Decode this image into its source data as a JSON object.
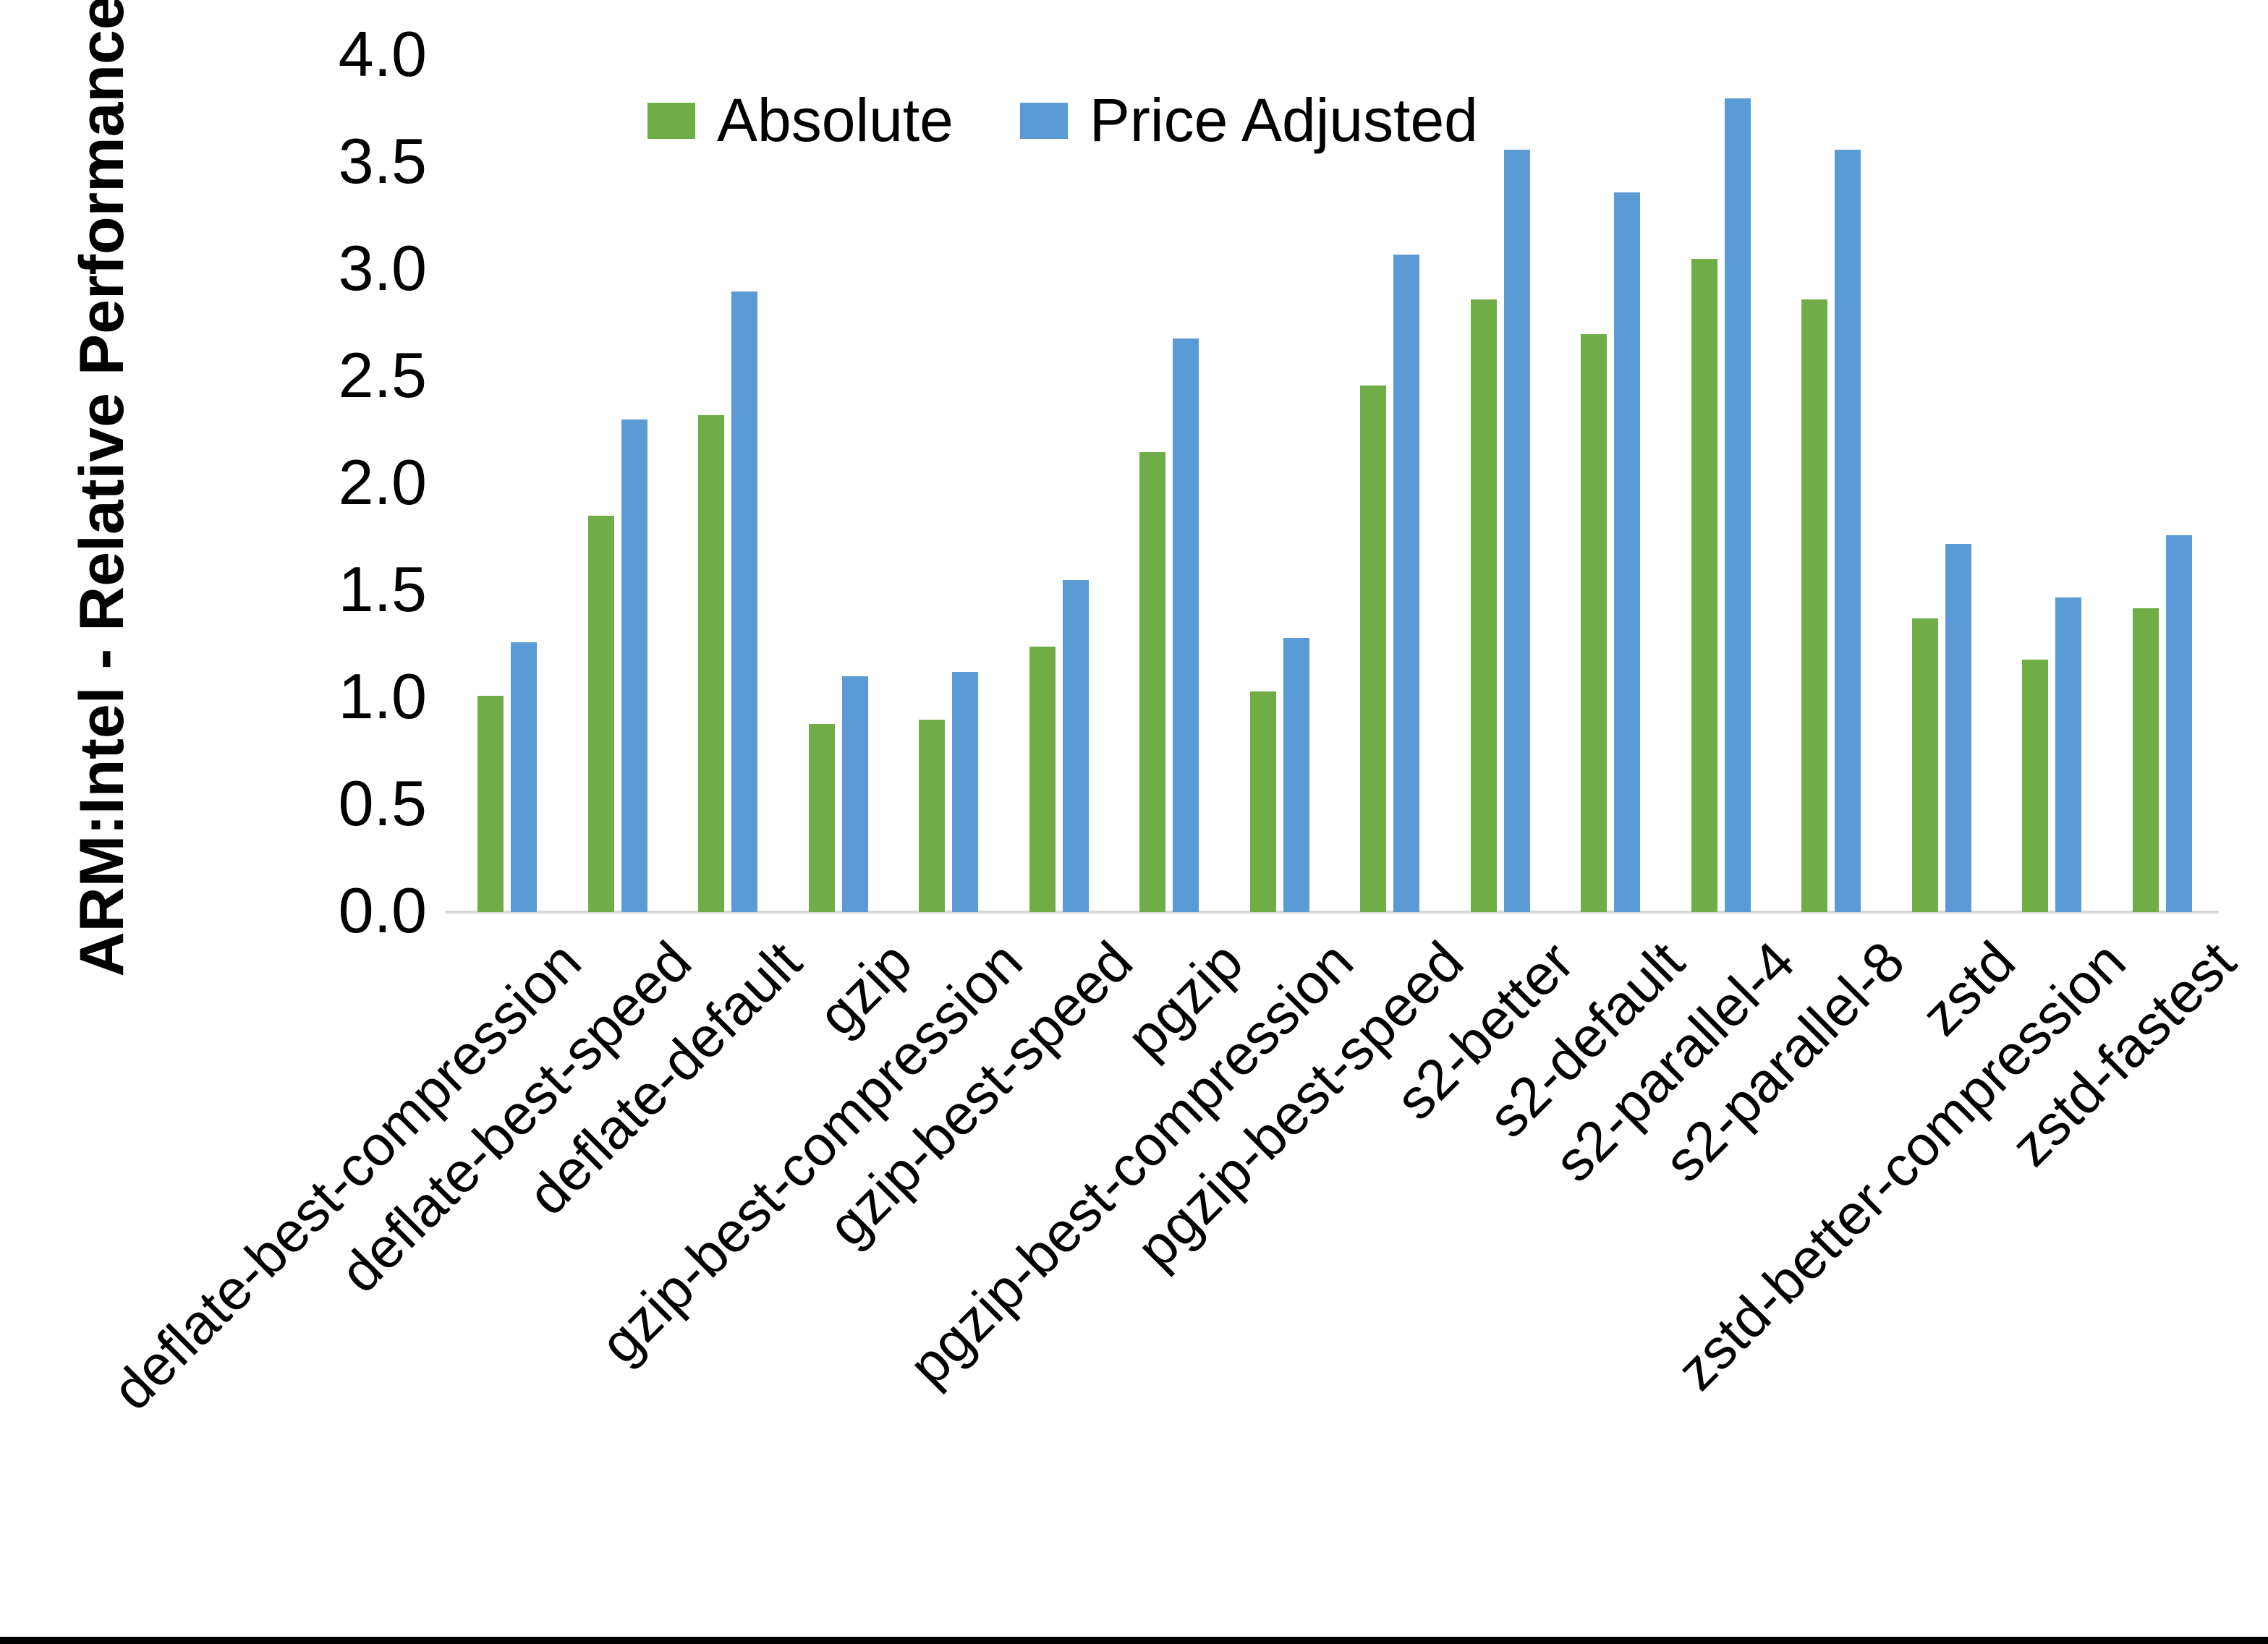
{
  "page": {
    "background": "#FFFFFF",
    "text_color": "#000000",
    "axis_line_color": "#D9D9D9",
    "bottom_border_color": "#000000"
  },
  "chart_data": {
    "type": "bar",
    "title": "",
    "xlabel": "",
    "ylabel": "ARM:Intel - Relative Performance",
    "ylim": [
      0.0,
      4.0
    ],
    "ytick_step": 0.5,
    "ytick_labels": [
      "4.0",
      "3.5",
      "3.0",
      "2.5",
      "2.0",
      "1.5",
      "1.0",
      "0.5",
      "0.0"
    ],
    "grid": false,
    "legend_position": "top-center",
    "legend": [
      "Absolute",
      "Price Adjusted"
    ],
    "categories": [
      "deflate-best-compression",
      "deflate-best-speed",
      "deflate-default",
      "gzip",
      "gzip-best-compression",
      "gzip-best-speed",
      "pgzip",
      "pgzip-best-compression",
      "pgzip-best-speed",
      "s2-better",
      "s2-default",
      "s2-parallel-4",
      "s2-parallel-8",
      "zstd",
      "zstd-better-compression",
      "zstd-fastest"
    ],
    "series": [
      {
        "name": "Absolute",
        "color": "#70AD47",
        "values": [
          1.01,
          1.85,
          2.32,
          0.88,
          0.9,
          1.24,
          2.15,
          1.03,
          2.46,
          2.86,
          2.7,
          3.05,
          2.86,
          1.37,
          1.18,
          1.42
        ]
      },
      {
        "name": "Price Adjusted",
        "color": "#5B9BD5",
        "values": [
          1.26,
          2.3,
          2.9,
          1.1,
          1.12,
          1.55,
          2.68,
          1.28,
          3.07,
          3.56,
          3.36,
          3.8,
          3.56,
          1.72,
          1.47,
          1.76
        ]
      }
    ]
  }
}
